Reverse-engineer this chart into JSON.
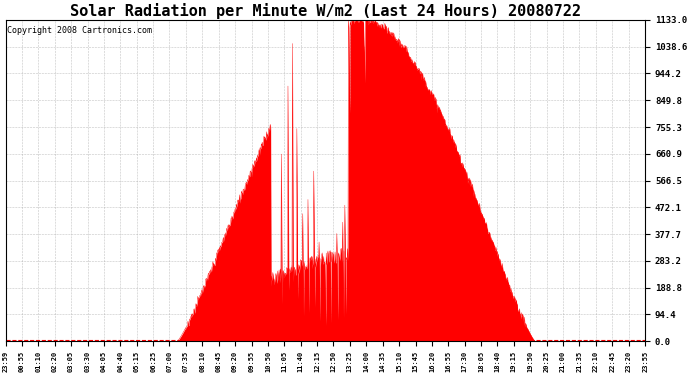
{
  "title": "Solar Radiation per Minute W/m2 (Last 24 Hours) 20080722",
  "copyright": "Copyright 2008 Cartronics.com",
  "yticks": [
    0.0,
    94.4,
    188.8,
    283.2,
    377.7,
    472.1,
    566.5,
    660.9,
    755.3,
    849.8,
    944.2,
    1038.6,
    1133.0
  ],
  "ymax": 1133.0,
  "ymin": 0.0,
  "fill_color": "#ff0000",
  "line_color": "#ff0000",
  "background_color": "#ffffff",
  "grid_color": "#aaaaaa",
  "title_fontsize": 11,
  "copyright_fontsize": 6,
  "xtick_labels": [
    "23:59",
    "00:55",
    "01:10",
    "02:20",
    "03:05",
    "03:30",
    "04:05",
    "04:40",
    "05:15",
    "06:25",
    "07:00",
    "07:35",
    "08:10",
    "08:45",
    "09:20",
    "09:55",
    "10:50",
    "11:05",
    "11:40",
    "12:15",
    "12:50",
    "13:25",
    "14:00",
    "14:35",
    "15:10",
    "15:45",
    "16:20",
    "16:55",
    "17:30",
    "18:05",
    "18:40",
    "19:15",
    "19:50",
    "20:25",
    "21:00",
    "21:35",
    "22:10",
    "22:45",
    "23:20",
    "23:55"
  ],
  "sunrise_minute": 386,
  "sunset_minute": 1191,
  "solar_noon_minute": 800,
  "peak_value": 1133.0,
  "n_points": 1440,
  "baseline_y": 5.0
}
